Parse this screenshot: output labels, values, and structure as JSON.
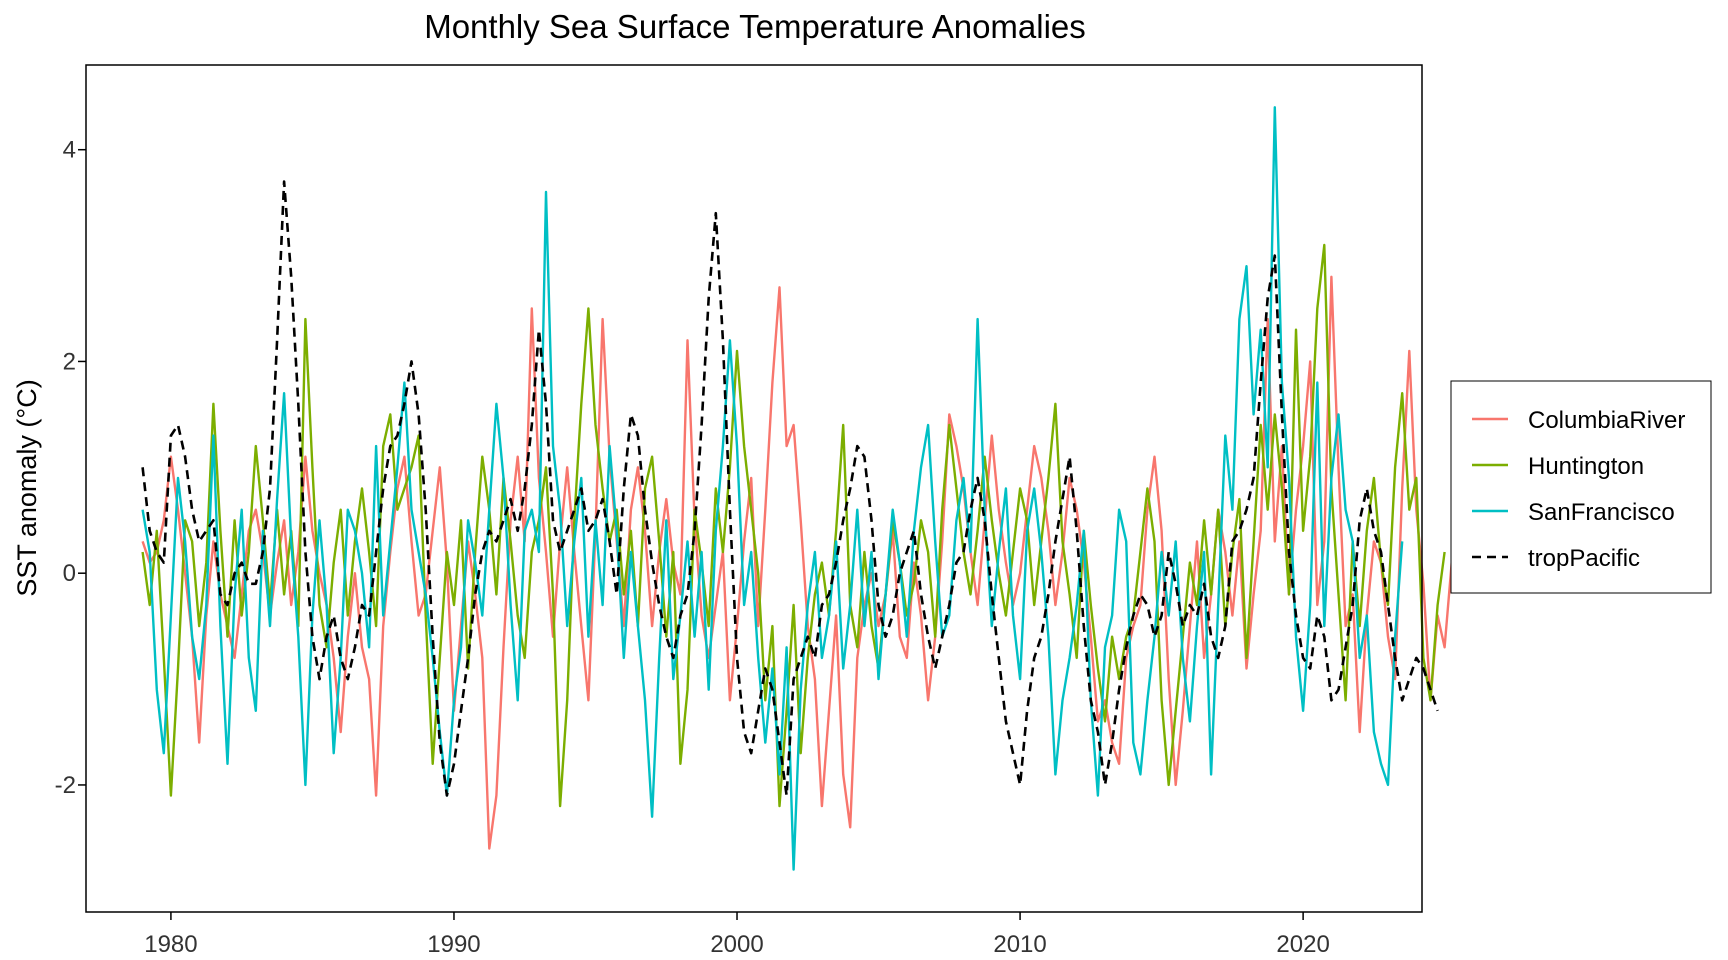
{
  "chart_data": {
    "type": "line",
    "title": "Monthly Sea Surface Temperature Anomalies",
    "xlabel": "",
    "ylabel": "SST anomaly (°C)",
    "xlim": [
      1977.0,
      2024.2
    ],
    "ylim": [
      -3.2,
      4.8
    ],
    "x_ticks": [
      1980,
      1990,
      2000,
      2010,
      2020
    ],
    "y_ticks": [
      -2,
      0,
      2,
      4
    ],
    "x_tick_labels": [
      "1980",
      "1990",
      "2000",
      "2010",
      "2020"
    ],
    "y_tick_labels": [
      "-2",
      "0",
      "2",
      "4"
    ],
    "legend": {
      "position": "right"
    },
    "sample_step_years": 0.25,
    "series": [
      {
        "name": "ColumbiaRiver",
        "color": "#F8766D",
        "dash": "solid",
        "x_start": 1979.0,
        "values": [
          0.3,
          0.1,
          0.2,
          0.5,
          1.1,
          0.6,
          0.0,
          -0.6,
          -1.6,
          -0.4,
          0.3,
          -0.2,
          -0.5,
          -0.8,
          -0.2,
          0.4,
          0.6,
          0.2,
          -0.4,
          0.1,
          0.5,
          -0.3,
          0.2,
          1.1,
          0.4,
          0.0,
          -0.3,
          -0.8,
          -1.5,
          -0.6,
          0.0,
          -0.7,
          -1.0,
          -2.1,
          -0.5,
          0.2,
          0.8,
          1.1,
          0.3,
          -0.4,
          -0.2,
          0.4,
          1.0,
          0.1,
          -1.3,
          -0.5,
          0.3,
          -0.2,
          -0.8,
          -2.6,
          -2.1,
          -0.7,
          0.5,
          1.1,
          0.3,
          2.5,
          0.9,
          0.2,
          -0.6,
          0.3,
          1.0,
          0.2,
          -0.5,
          -1.2,
          0.4,
          2.4,
          1.1,
          0.3,
          -0.5,
          0.6,
          1.0,
          0.4,
          -0.5,
          0.2,
          0.7,
          0.1,
          -0.2,
          2.2,
          0.5,
          -0.4,
          -0.8,
          -0.3,
          0.2,
          -1.2,
          -0.5,
          0.3,
          0.9,
          -0.5,
          0.6,
          1.8,
          2.7,
          1.2,
          1.4,
          0.5,
          -0.5,
          -1.0,
          -2.2,
          -1.3,
          -0.4,
          -1.9,
          -2.4,
          -0.8,
          -0.3,
          0.0,
          -0.5,
          -0.2,
          0.4,
          -0.6,
          -0.8,
          0.1,
          -0.4,
          -1.2,
          -0.6,
          0.3,
          1.5,
          1.2,
          0.8,
          0.2,
          -0.3,
          0.5,
          1.3,
          0.6,
          0.1,
          -0.3,
          0.0,
          0.6,
          1.2,
          0.9,
          0.4,
          -0.3,
          0.2,
          0.9,
          0.6,
          0.1,
          -0.6,
          -1.4,
          -1.2,
          -1.6,
          -1.8,
          -0.8,
          -0.5,
          -0.3,
          0.6,
          1.1,
          0.4,
          -1.0,
          -2.0,
          -1.3,
          -0.5,
          0.3,
          -0.8,
          -0.2,
          0.6,
          0.2,
          -0.4,
          0.3,
          -0.9,
          -0.2,
          0.4,
          2.4,
          0.3,
          1.2,
          -0.2,
          0.6,
          1.2,
          2.0,
          -0.3,
          0.3,
          2.8,
          1.0,
          -0.5,
          -0.2,
          -1.5,
          -0.4,
          0.3,
          0.1,
          -0.6,
          -1.0,
          0.8,
          2.1,
          0.6,
          -0.1,
          -1.2,
          -0.4,
          -0.7,
          0.1
        ]
      },
      {
        "name": "Huntington",
        "color": "#7CAE00",
        "dash": "solid",
        "x_start": 1979.0,
        "values": [
          0.2,
          -0.3,
          0.4,
          -0.8,
          -2.1,
          -0.9,
          0.5,
          0.3,
          -0.5,
          0.1,
          1.6,
          0.4,
          -0.6,
          0.5,
          -0.4,
          0.2,
          1.2,
          0.5,
          -0.3,
          0.6,
          -0.2,
          0.4,
          -0.5,
          2.4,
          1.0,
          -0.3,
          -0.7,
          0.1,
          0.6,
          -0.4,
          0.3,
          0.8,
          0.2,
          -0.5,
          1.2,
          1.5,
          0.6,
          0.8,
          1.0,
          1.3,
          -0.4,
          -1.8,
          -0.8,
          0.2,
          -0.3,
          0.5,
          -0.9,
          0.2,
          1.1,
          0.6,
          -0.2,
          0.9,
          0.3,
          -0.4,
          -0.8,
          0.2,
          0.5,
          1.0,
          -0.2,
          -2.2,
          -1.2,
          0.5,
          1.6,
          2.5,
          1.4,
          0.8,
          0.3,
          0.6,
          -0.2,
          0.4,
          -0.5,
          0.8,
          1.1,
          0.3,
          -0.6,
          0.2,
          -1.8,
          -1.1,
          0.6,
          0.1,
          -0.5,
          0.8,
          0.2,
          1.0,
          2.1,
          1.2,
          0.6,
          0.0,
          -1.2,
          -0.5,
          -2.2,
          -1.3,
          -0.3,
          -1.7,
          -0.8,
          -0.2,
          0.1,
          -0.4,
          0.4,
          1.4,
          -0.3,
          -0.7,
          0.2,
          -0.5,
          -0.9,
          -0.2,
          0.5,
          0.1,
          -0.4,
          -0.1,
          0.5,
          0.2,
          -0.6,
          0.6,
          1.4,
          0.8,
          0.2,
          -0.2,
          0.4,
          1.1,
          0.5,
          0.0,
          -0.4,
          0.2,
          0.8,
          0.5,
          -0.3,
          0.3,
          0.9,
          1.6,
          0.3,
          -0.2,
          -0.8,
          0.4,
          -0.3,
          -0.9,
          -1.4,
          -0.6,
          -1.0,
          -0.6,
          -0.4,
          0.2,
          0.8,
          0.3,
          -1.2,
          -2.0,
          -1.3,
          -0.6,
          0.1,
          -0.3,
          0.5,
          -0.2,
          0.6,
          -0.5,
          0.2,
          0.7,
          -0.8,
          0.3,
          1.4,
          0.6,
          1.5,
          0.8,
          -0.2,
          2.3,
          0.4,
          1.1,
          2.5,
          3.1,
          0.8,
          -0.2,
          -1.2,
          0.3,
          -0.5,
          0.4,
          0.9,
          0.1,
          -0.3,
          1.0,
          1.7,
          0.6,
          0.9,
          -0.8,
          -1.2,
          -0.3,
          0.2
        ]
      },
      {
        "name": "SanFrancisco",
        "color": "#00BFC4",
        "dash": "solid",
        "x_start": 1979.0,
        "values": [
          0.6,
          0.2,
          -1.1,
          -1.7,
          -0.4,
          0.9,
          0.3,
          -0.6,
          -1.0,
          -0.3,
          1.3,
          -0.5,
          -1.8,
          -0.2,
          0.6,
          -0.8,
          -1.3,
          0.4,
          -0.5,
          0.7,
          1.7,
          0.3,
          -0.6,
          -2.0,
          -0.4,
          0.5,
          -0.3,
          -1.7,
          -0.8,
          0.6,
          0.4,
          0.0,
          -0.7,
          1.2,
          -0.4,
          0.3,
          1.0,
          1.8,
          0.6,
          0.2,
          -0.2,
          -0.8,
          -1.5,
          -2.1,
          -1.2,
          -0.7,
          0.5,
          0.1,
          -0.4,
          0.6,
          1.6,
          0.9,
          -0.3,
          -1.2,
          0.4,
          0.6,
          0.2,
          3.6,
          1.2,
          0.6,
          -0.5,
          0.3,
          0.9,
          -0.6,
          0.5,
          -0.3,
          1.2,
          0.4,
          -0.8,
          0.2,
          -0.5,
          -1.2,
          -2.3,
          -0.8,
          0.5,
          -1.0,
          -0.4,
          0.3,
          -0.6,
          0.2,
          -1.1,
          0.4,
          1.2,
          2.2,
          1.2,
          -0.3,
          0.2,
          -0.8,
          -1.6,
          -0.9,
          -1.9,
          -0.7,
          -2.8,
          -1.1,
          -0.3,
          0.2,
          -0.8,
          -0.4,
          0.3,
          -0.9,
          -0.3,
          0.6,
          -0.5,
          0.2,
          -1.0,
          -0.2,
          0.6,
          0.1,
          -0.6,
          0.4,
          1.0,
          1.4,
          0.3,
          -0.6,
          -0.4,
          0.5,
          0.9,
          0.2,
          2.4,
          0.6,
          -0.5,
          0.2,
          0.8,
          -0.4,
          -1.0,
          0.4,
          0.8,
          0.2,
          -0.6,
          -1.9,
          -1.2,
          -0.8,
          -0.3,
          0.4,
          -1.2,
          -2.1,
          -0.7,
          -0.4,
          0.6,
          0.3,
          -1.6,
          -1.9,
          -1.2,
          -0.6,
          0.2,
          -0.4,
          0.3,
          -0.8,
          -1.4,
          -0.5,
          0.2,
          -1.9,
          -0.3,
          1.3,
          0.6,
          2.4,
          2.9,
          1.5,
          2.3,
          1.0,
          4.4,
          1.8,
          0.9,
          -0.6,
          -1.3,
          -0.3,
          1.8,
          -0.5,
          0.9,
          1.5,
          0.6,
          0.3,
          -0.8,
          -0.4,
          -1.5,
          -1.8,
          -2.0,
          -0.6,
          0.3
        ]
      },
      {
        "name": "tropPacific",
        "color": "#000000",
        "dash": "dashed",
        "x_start": 1979.0,
        "values": [
          1.0,
          0.4,
          0.2,
          0.1,
          1.3,
          1.4,
          1.1,
          0.6,
          0.3,
          0.4,
          0.5,
          -0.2,
          -0.3,
          0.0,
          0.1,
          -0.1,
          -0.1,
          0.2,
          0.8,
          2.2,
          3.7,
          2.8,
          1.6,
          0.2,
          -0.6,
          -1.0,
          -0.6,
          -0.4,
          -0.8,
          -1.0,
          -0.7,
          -0.3,
          -0.4,
          0.2,
          0.8,
          1.2,
          1.3,
          1.6,
          2.0,
          1.5,
          0.6,
          -0.6,
          -1.6,
          -2.1,
          -1.8,
          -1.3,
          -0.8,
          -0.2,
          0.2,
          0.4,
          0.3,
          0.5,
          0.7,
          0.4,
          0.8,
          1.4,
          2.3,
          1.6,
          0.5,
          0.2,
          0.4,
          0.6,
          0.8,
          0.4,
          0.5,
          0.7,
          0.3,
          -0.2,
          0.8,
          1.5,
          1.3,
          0.6,
          0.1,
          -0.3,
          -0.6,
          -0.8,
          -0.4,
          -0.2,
          0.4,
          1.4,
          2.6,
          3.4,
          2.2,
          0.6,
          -0.8,
          -1.5,
          -1.7,
          -1.3,
          -0.9,
          -1.1,
          -1.6,
          -2.1,
          -1.0,
          -0.8,
          -0.6,
          -0.8,
          -0.3,
          -0.2,
          0.1,
          0.5,
          0.8,
          1.2,
          1.1,
          0.5,
          -0.3,
          -0.6,
          -0.4,
          0.0,
          0.2,
          0.4,
          -0.2,
          -0.6,
          -0.9,
          -0.6,
          -0.3,
          0.1,
          0.2,
          0.6,
          0.9,
          0.5,
          -0.2,
          -0.8,
          -1.4,
          -1.7,
          -2.0,
          -1.3,
          -0.8,
          -0.6,
          -0.2,
          0.3,
          0.7,
          1.1,
          0.4,
          -0.5,
          -1.2,
          -1.5,
          -2.0,
          -1.6,
          -1.1,
          -0.7,
          -0.4,
          -0.2,
          -0.3,
          -0.6,
          -0.4,
          0.2,
          -0.1,
          -0.5,
          -0.3,
          -0.4,
          -0.1,
          -0.6,
          -0.8,
          -0.5,
          0.3,
          0.4,
          0.6,
          0.9,
          1.8,
          2.6,
          3.0,
          1.5,
          0.2,
          -0.4,
          -0.8,
          -0.9,
          -0.4,
          -0.6,
          -1.2,
          -1.1,
          -0.7,
          -0.3,
          0.5,
          0.8,
          0.4,
          0.2,
          -0.3,
          -0.8,
          -1.2,
          -1.0,
          -0.8,
          -0.9,
          -1.1,
          -1.3
        ]
      }
    ]
  }
}
